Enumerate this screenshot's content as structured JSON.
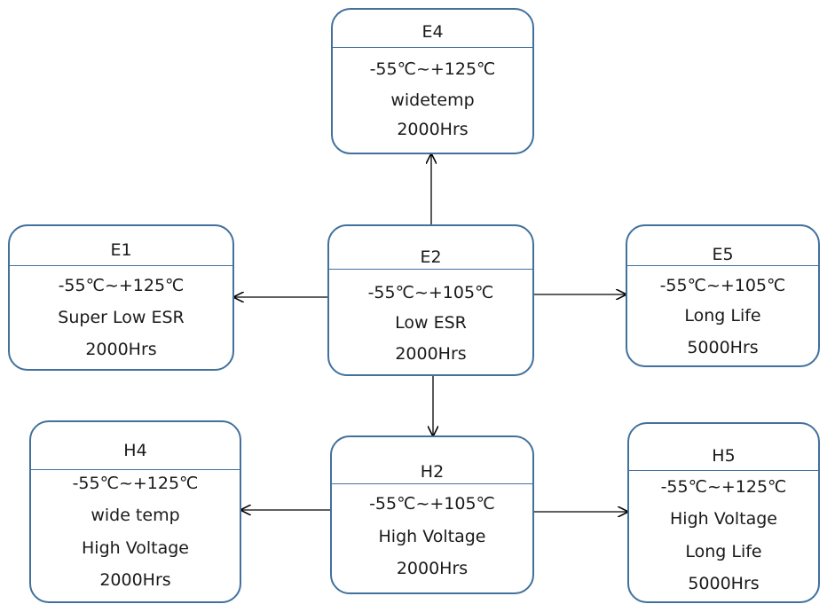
{
  "nodes": {
    "e4": {
      "title": "E4",
      "lines": [
        "-55℃~+125℃",
        "widetemp",
        "2000Hrs"
      ]
    },
    "e1": {
      "title": "E1",
      "lines": [
        "-55℃~+125℃",
        "Super Low ESR",
        "2000Hrs"
      ]
    },
    "e2": {
      "title": "E2",
      "lines": [
        "-55℃~+105℃",
        "Low ESR",
        "2000Hrs"
      ]
    },
    "e5": {
      "title": "E5",
      "lines": [
        "-55℃~+105℃",
        "Long Life",
        "5000Hrs"
      ]
    },
    "h4": {
      "title": "H4",
      "lines": [
        "-55℃~+125℃",
        "wide temp",
        "High Voltage",
        "2000Hrs"
      ]
    },
    "h2": {
      "title": "H2",
      "lines": [
        "-55℃~+105℃",
        "High Voltage",
        "2000Hrs"
      ]
    },
    "h5": {
      "title": "H5",
      "lines": [
        "-55℃~+125℃",
        "High Voltage",
        "Long Life",
        "5000Hrs"
      ]
    }
  },
  "colors": {
    "border": "#41719c",
    "arrow": "#000000",
    "text": "#1a1a1a"
  }
}
